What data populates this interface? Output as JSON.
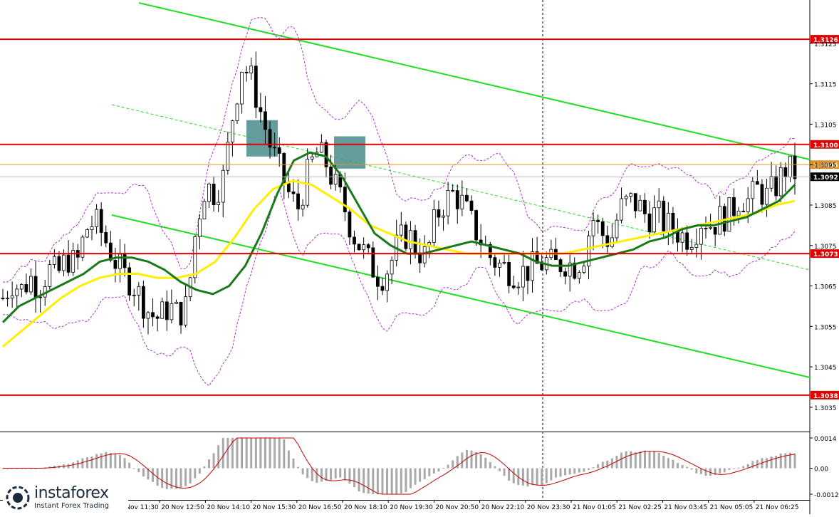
{
  "chart_data": [
    {
      "type": "candlestick",
      "instrument_note": "",
      "y_axis": {
        "ticks": [
          "1.3125",
          "1.3115",
          "1.3105",
          "1.3095",
          "1.3085",
          "1.3075",
          "1.3065",
          "1.3055",
          "1.3045",
          "1.3035"
        ],
        "ylim": [
          1.3029,
          1.3135
        ]
      },
      "x_axis": {
        "ticks": [
          "20 Nov 11:30",
          "20 Nov 12:50",
          "20 Nov 14:10",
          "20 Nov 15:30",
          "20 Nov 16:50",
          "20 Nov 18:10",
          "20 Nov 19:30",
          "20 Nov 20:50",
          "20 Nov 22:10",
          "20 Nov 23:30",
          "21 Nov 01:05",
          "21 Nov 02:25",
          "21 Nov 03:45",
          "21 Nov 05:05",
          "21 Nov 06:25"
        ]
      },
      "levels": [
        {
          "value": 1.3126,
          "label": "1.3126",
          "color": "#e00000"
        },
        {
          "value": 1.31,
          "label": "1.3100",
          "color": "#e00000"
        },
        {
          "value": 1.3095,
          "label": "1.3095",
          "color": "#e0922a"
        },
        {
          "value": 1.3092,
          "label": "1.3092",
          "color": "#000000"
        },
        {
          "value": 1.3073,
          "label": "1.3073",
          "color": "#e00000"
        },
        {
          "value": 1.3038,
          "label": "1.3038",
          "color": "#e00000"
        }
      ],
      "price_path": [
        1.3062,
        1.3066,
        1.3064,
        1.3067,
        1.3065,
        1.3069,
        1.3068,
        1.3072,
        1.307,
        1.3079,
        1.3081,
        1.3077,
        1.3072,
        1.3068,
        1.3066,
        1.3062,
        1.3058,
        1.3057,
        1.306,
        1.3058,
        1.306,
        1.308,
        1.309,
        1.3088,
        1.3092,
        1.3108,
        1.312,
        1.3116,
        1.3108,
        1.31,
        1.3094,
        1.3088,
        1.3084,
        1.3092,
        1.3098,
        1.3096,
        1.309,
        1.3085,
        1.3078,
        1.3074,
        1.307,
        1.3067,
        1.307,
        1.3076,
        1.3078,
        1.3074,
        1.3072,
        1.3082,
        1.3086,
        1.3088,
        1.3085,
        1.308,
        1.3076,
        1.3072,
        1.307,
        1.3069,
        1.3068,
        1.3069,
        1.307,
        1.3071,
        1.307,
        1.3071,
        1.307,
        1.3072,
        1.3082,
        1.3078,
        1.3076,
        1.3084,
        1.3086,
        1.3085,
        1.3082,
        1.3083,
        1.308,
        1.3079,
        1.3077,
        1.3078,
        1.3082,
        1.308,
        1.3082,
        1.3083,
        1.3087,
        1.3086,
        1.3089,
        1.3087,
        1.309,
        1.3094,
        1.3093
      ],
      "ma_green": [
        1.3056,
        1.306,
        1.3062,
        1.3064,
        1.3066,
        1.3068,
        1.3071,
        1.3072,
        1.3072,
        1.3071,
        1.3069,
        1.3066,
        1.3064,
        1.3063,
        1.3065,
        1.307,
        1.3078,
        1.3088,
        1.3096,
        1.3098,
        1.3097,
        1.3092,
        1.3085,
        1.3078,
        1.3075,
        1.3073,
        1.3073,
        1.3074,
        1.3075,
        1.3076,
        1.3075,
        1.3074,
        1.3073,
        1.3071,
        1.307,
        1.307,
        1.3071,
        1.3072,
        1.3073,
        1.3074,
        1.3076,
        1.3077,
        1.3079,
        1.308,
        1.308,
        1.3081,
        1.3082,
        1.3084,
        1.3086,
        1.309
      ],
      "ma_yellow": [
        1.305,
        1.3054,
        1.3058,
        1.3062,
        1.3065,
        1.3067,
        1.3068,
        1.3068,
        1.3067,
        1.3067,
        1.3068,
        1.3071,
        1.3077,
        1.3084,
        1.3089,
        1.3091,
        1.309,
        1.3087,
        1.3084,
        1.308,
        1.3078,
        1.3076,
        1.3075,
        1.3074,
        1.3073,
        1.3073,
        1.3073,
        1.3073,
        1.3073,
        1.3073,
        1.3074,
        1.3075,
        1.3076,
        1.3077,
        1.3078,
        1.3079,
        1.308,
        1.3081,
        1.3082,
        1.3083,
        1.3085,
        1.3086
      ],
      "signals": [
        {
          "label": "",
          "price_top": 1.3106,
          "price_bottom": 1.3097
        },
        {
          "label": "",
          "price_top": 1.3102,
          "price_bottom": 1.3094
        }
      ]
    },
    {
      "type": "bar",
      "indicator": "oscillator",
      "y_axis": {
        "ticks": [
          "0.0014",
          "0.00",
          "-0.0012"
        ],
        "ylim": [
          -0.0012,
          0.0014
        ]
      },
      "signal_color": "#c00000",
      "bar_color": "#a8a8a8"
    }
  ],
  "branding": {
    "name": "instaforex",
    "tagline": "Instant Forex Trading"
  }
}
